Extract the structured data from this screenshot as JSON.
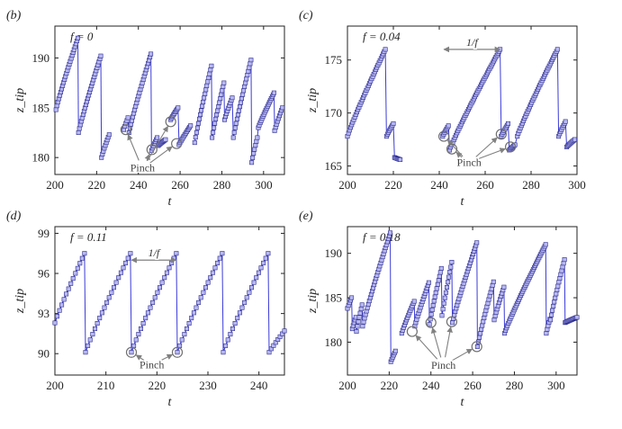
{
  "figure": {
    "pinch_label": "Pinch",
    "period_label": "1/f"
  },
  "chart_data": [
    {
      "type": "line",
      "panel_label": "(b)",
      "annotation": "f = 0",
      "xlabel": "t",
      "ylabel": "z_tip",
      "xlim": [
        200,
        310
      ],
      "ylim": [
        178.3,
        193.2
      ],
      "xticks": [
        200,
        220,
        240,
        260,
        280,
        300
      ],
      "yticks": [
        180,
        185,
        190
      ],
      "x_tick_labels": [
        "200",
        "220",
        "240",
        "260",
        "280",
        "300"
      ],
      "y_tick_labels": [
        "180",
        "185",
        "190"
      ],
      "series": [
        {
          "name": "z_tip",
          "color": "#3b3bd8",
          "segments": [
            {
              "t": [
                200.5,
                211
              ],
              "z": [
                184.8,
                192
              ]
            },
            {
              "t": [
                211.3,
                222
              ],
              "z": [
                182.5,
                190.2
              ]
            },
            {
              "t": [
                222.3,
                226
              ],
              "z": [
                180.0,
                182.3
              ]
            },
            {
              "t": [
                233,
                235
              ],
              "z": [
                182.8,
                184.0
              ]
            },
            {
              "t": [
                235.5,
                246
              ],
              "z": [
                182.5,
                190.4
              ]
            },
            {
              "t": [
                246.3,
                249
              ],
              "z": [
                180.7,
                182.0
              ]
            },
            {
              "t": [
                249.5,
                253
              ],
              "z": [
                181.2,
                181.8
              ]
            },
            {
              "t": [
                255.5,
                259
              ],
              "z": [
                183.8,
                185.0
              ]
            },
            {
              "t": [
                259.5,
                265
              ],
              "z": [
                181.3,
                183.2
              ]
            },
            {
              "t": [
                267,
                275
              ],
              "z": [
                181.5,
                189.2
              ]
            },
            {
              "t": [
                275.3,
                281
              ],
              "z": [
                182.0,
                187.5
              ]
            },
            {
              "t": [
                281.3,
                285
              ],
              "z": [
                183.8,
                186.0
              ]
            },
            {
              "t": [
                285.5,
                294
              ],
              "z": [
                182.0,
                189.8
              ]
            },
            {
              "t": [
                294.3,
                297
              ],
              "z": [
                179.5,
                182.0
              ]
            },
            {
              "t": [
                297.5,
                305
              ],
              "z": [
                183.0,
                186.5
              ]
            },
            {
              "t": [
                305.3,
                309
              ],
              "z": [
                182.7,
                185.0
              ]
            }
          ]
        }
      ],
      "pinch_points": [
        [
          234,
          182.8
        ],
        [
          246.5,
          180.8
        ],
        [
          255.5,
          183.6
        ],
        [
          258.3,
          181.4
        ]
      ],
      "pinch_text_at": [
        242,
        178.6
      ]
    },
    {
      "type": "line",
      "panel_label": "(c)",
      "annotation": "f = 0.04",
      "xlabel": "t",
      "ylabel": "z_tip",
      "xlim": [
        200,
        300
      ],
      "ylim": [
        164.2,
        178.2
      ],
      "xticks": [
        200,
        220,
        240,
        260,
        280,
        300
      ],
      "yticks": [
        165,
        170,
        175
      ],
      "x_tick_labels": [
        "200",
        "220",
        "240",
        "260",
        "280",
        "300"
      ],
      "y_tick_labels": [
        "165",
        "170",
        "175"
      ],
      "series": [
        {
          "name": "z_tip",
          "color": "#3b3bd8",
          "segments": [
            {
              "t": [
                200,
                216.5
              ],
              "z": [
                167.8,
                176
              ]
            },
            {
              "t": [
                217,
                220
              ],
              "z": [
                167.8,
                169.0
              ]
            },
            {
              "t": [
                220.5,
                223
              ],
              "z": [
                165.8,
                165.6
              ]
            },
            {
              "t": [
                241.5,
                244
              ],
              "z": [
                167.8,
                168.8
              ]
            },
            {
              "t": [
                244.5,
                266.5
              ],
              "z": [
                166.5,
                176
              ]
            },
            {
              "t": [
                267,
                270
              ],
              "z": [
                167.8,
                169.0
              ]
            },
            {
              "t": [
                270.5,
                273
              ],
              "z": [
                166.5,
                167.0
              ]
            },
            {
              "t": [
                274,
                291.5
              ],
              "z": [
                167.8,
                176
              ]
            },
            {
              "t": [
                292,
                295
              ],
              "z": [
                167.8,
                169.2
              ]
            },
            {
              "t": [
                295.5,
                299
              ],
              "z": [
                166.8,
                167.5
              ]
            }
          ]
        }
      ],
      "pinch_points": [
        [
          242,
          167.8
        ],
        [
          245.5,
          166.6
        ],
        [
          267,
          168
        ],
        [
          271,
          166.8
        ]
      ],
      "pinch_text_at": [
        253,
        165
      ],
      "period_arrow": {
        "t_start": 242,
        "t_end": 266.5,
        "z": 176
      }
    },
    {
      "type": "line",
      "panel_label": "(d)",
      "annotation": "f = 0.11",
      "xlabel": "t",
      "ylabel": "z_tip",
      "xlim": [
        200,
        245
      ],
      "ylim": [
        88.4,
        99.5
      ],
      "xticks": [
        200,
        210,
        220,
        230,
        240
      ],
      "yticks": [
        90,
        93,
        96,
        99
      ],
      "x_tick_labels": [
        "200",
        "210",
        "220",
        "230",
        "240"
      ],
      "y_tick_labels": [
        "90",
        "93",
        "96",
        "99"
      ],
      "series": [
        {
          "name": "z_tip",
          "color": "#3b3bd8",
          "segments": [
            {
              "t": [
                200,
                205.8
              ],
              "z": [
                92.3,
                97.5
              ]
            },
            {
              "t": [
                206,
                214.8
              ],
              "z": [
                90.1,
                97.5
              ]
            },
            {
              "t": [
                215,
                223.8
              ],
              "z": [
                90.1,
                97.5
              ]
            },
            {
              "t": [
                224,
                232.8
              ],
              "z": [
                90.1,
                97.5
              ]
            },
            {
              "t": [
                233,
                241.8
              ],
              "z": [
                90.1,
                97.5
              ]
            },
            {
              "t": [
                242,
                245
              ],
              "z": [
                90.1,
                91.7
              ]
            }
          ]
        }
      ],
      "pinch_points": [
        [
          215,
          90.1
        ],
        [
          224,
          90.1
        ]
      ],
      "pinch_text_at": [
        219,
        88.9
      ],
      "period_arrow": {
        "t_start": 215,
        "t_end": 223.8,
        "z": 97
      }
    },
    {
      "type": "line",
      "panel_label": "(e)",
      "annotation": "f = 0.18",
      "xlabel": "t",
      "ylabel": "z_tip",
      "xlim": [
        200,
        310
      ],
      "ylim": [
        176.3,
        193.0
      ],
      "xticks": [
        200,
        220,
        240,
        260,
        280,
        300
      ],
      "yticks": [
        180,
        185,
        190
      ],
      "x_tick_labels": [
        "200",
        "220",
        "240",
        "260",
        "280",
        "300"
      ],
      "y_tick_labels": [
        "180",
        "185",
        "190"
      ],
      "series": [
        {
          "name": "z_tip",
          "color": "#3b3bd8",
          "segments": [
            {
              "t": [
                200,
                202
              ],
              "z": [
                183.8,
                185.0
              ]
            },
            {
              "t": [
                202.3,
                204
              ],
              "z": [
                181.5,
                182.8
              ]
            },
            {
              "t": [
                204.3,
                207
              ],
              "z": [
                181.2,
                184.2
              ]
            },
            {
              "t": [
                207.3,
                220.5
              ],
              "z": [
                181.8,
                192.3
              ]
            },
            {
              "t": [
                220.8,
                223
              ],
              "z": [
                177.8,
                179.0
              ]
            },
            {
              "t": [
                226,
                232
              ],
              "z": [
                181.0,
                184.6
              ]
            },
            {
              "t": [
                232.3,
                239
              ],
              "z": [
                181.8,
                186.7
              ]
            },
            {
              "t": [
                239.3,
                245
              ],
              "z": [
                182.0,
                188.3
              ]
            },
            {
              "t": [
                245.3,
                250
              ],
              "z": [
                183.0,
                189.0
              ]
            },
            {
              "t": [
                250.3,
                262
              ],
              "z": [
                182.2,
                191.2
              ]
            },
            {
              "t": [
                262.3,
                270
              ],
              "z": [
                179.5,
                186.8
              ]
            },
            {
              "t": [
                270.3,
                275
              ],
              "z": [
                182.5,
                186.2
              ]
            },
            {
              "t": [
                275.3,
                295
              ],
              "z": [
                181.0,
                191.0
              ]
            },
            {
              "t": [
                295.3,
                297
              ],
              "z": [
                181.0,
                182.6
              ]
            },
            {
              "t": [
                297.3,
                304
              ],
              "z": [
                182.5,
                189.3
              ]
            },
            {
              "t": [
                304.3,
                310
              ],
              "z": [
                182.2,
                182.8
              ]
            }
          ]
        }
      ],
      "pinch_points": [
        [
          231,
          181.2
        ],
        [
          240,
          182.2
        ],
        [
          250,
          182.3
        ],
        [
          262,
          179.5
        ]
      ],
      "pinch_text_at": [
        246,
        177.0
      ]
    }
  ]
}
